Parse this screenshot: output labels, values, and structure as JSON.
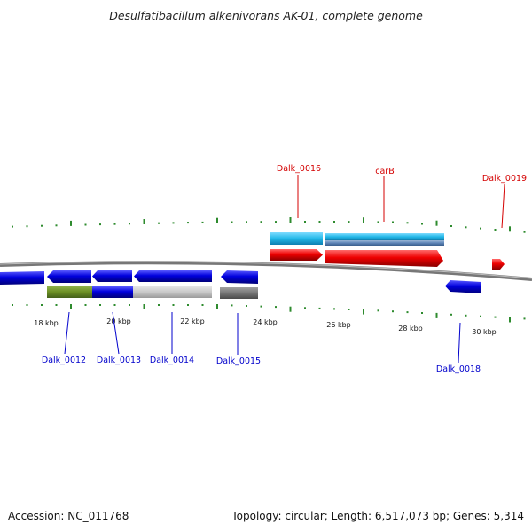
{
  "title": "Desulfatibacillum alkenivorans AK-01, complete genome",
  "footer": {
    "accession": "Accession: NC_011768",
    "summary": "Topology: circular; Length: 6,517,073 bp; Genes: 5,314"
  },
  "colors": {
    "backbone": "#808080",
    "tick_mark": "#2e8b2e",
    "forward_label": "#d40000",
    "reverse_label": "#0000cc",
    "gene_blue": "#0000dd",
    "gene_red": "#ee0000",
    "gene_cyan": "#22b8e8",
    "feature_green": "#6b8e23",
    "feature_lightgray": "#c8c8c8",
    "feature_darkgray": "#777777"
  },
  "scale": {
    "tick_labels": [
      "18 kbp",
      "20 kbp",
      "22 kbp",
      "24 kbp",
      "26 kbp",
      "28 kbp",
      "30 kbp"
    ]
  },
  "gene_labels": {
    "forward": [
      "Dalk_0016",
      "carB",
      "Dalk_0019"
    ],
    "reverse": [
      "Dalk_0012",
      "Dalk_0013",
      "Dalk_0014",
      "Dalk_0015",
      "Dalk_0018"
    ]
  },
  "chart_data": {
    "type": "genome_map",
    "title": "Desulfatibacillum alkenivorans AK-01, complete genome",
    "tick_labels": [
      "18 kbp",
      "20 kbp",
      "22 kbp",
      "24 kbp",
      "26 kbp",
      "28 kbp",
      "30 kbp"
    ],
    "genes": [
      {
        "label": "Dalk_0012",
        "strand": "-"
      },
      {
        "label": "Dalk_0013",
        "strand": "-"
      },
      {
        "label": "Dalk_0014",
        "strand": "-"
      },
      {
        "label": "Dalk_0015",
        "strand": "-"
      },
      {
        "label": "Dalk_0016",
        "strand": "+"
      },
      {
        "label": "carB",
        "strand": "+"
      },
      {
        "label": "Dalk_0018",
        "strand": "-"
      },
      {
        "label": "Dalk_0019",
        "strand": "+"
      }
    ]
  }
}
